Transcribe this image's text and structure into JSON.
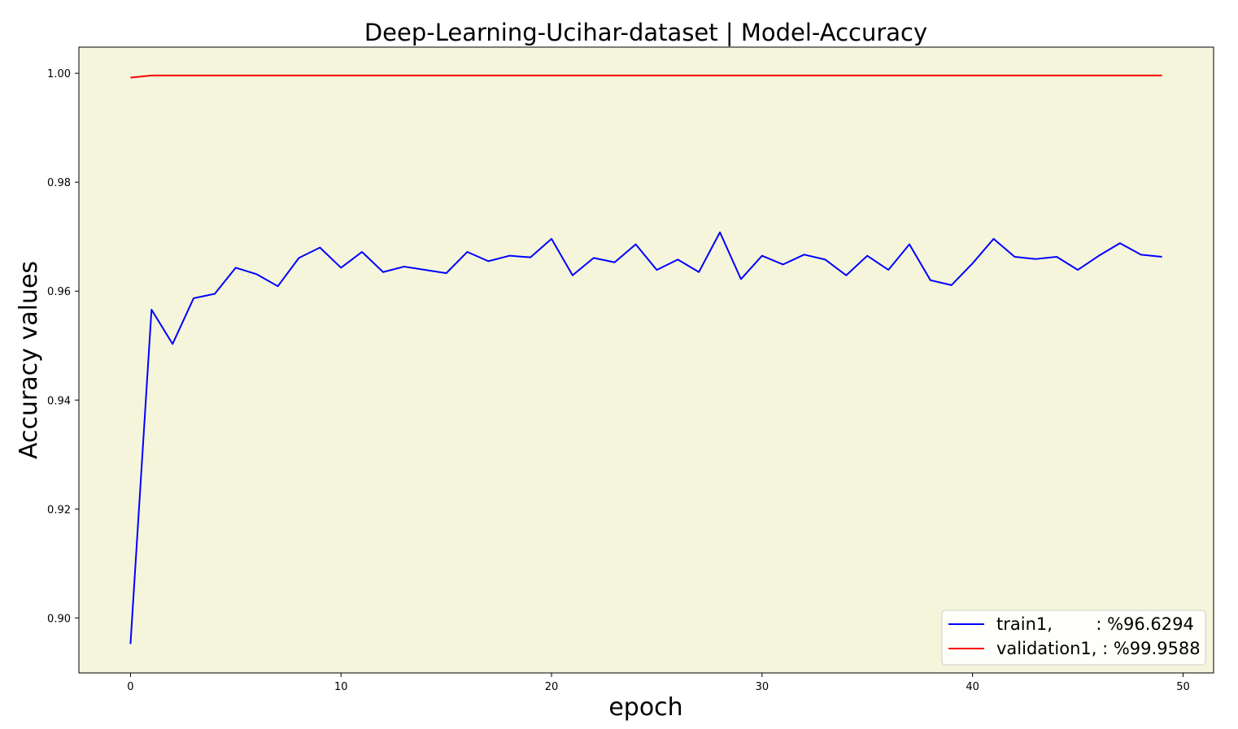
{
  "chart_data": {
    "type": "line",
    "title": "Deep-Learning-Ucihar-dataset  | Model-Accuracy",
    "xlabel": "epoch",
    "ylabel": "Accuracy values",
    "xlim": [
      -2.45,
      51.45
    ],
    "ylim": [
      0.8899,
      1.0048
    ],
    "xticks": [
      0,
      10,
      20,
      30,
      40,
      50
    ],
    "yticks": [
      0.9,
      0.92,
      0.94,
      0.96,
      0.98,
      1.0
    ],
    "xtick_labels": [
      "0",
      "10",
      "20",
      "30",
      "40",
      "50"
    ],
    "ytick_labels": [
      "0.90",
      "0.92",
      "0.94",
      "0.96",
      "0.98",
      "1.00"
    ],
    "grid": false,
    "legend_position": "lower-right",
    "plot_background": "#f5f5dc",
    "x": [
      0,
      1,
      2,
      3,
      4,
      5,
      6,
      7,
      8,
      9,
      10,
      11,
      12,
      13,
      14,
      15,
      16,
      17,
      18,
      19,
      20,
      21,
      22,
      23,
      24,
      25,
      26,
      27,
      28,
      29,
      30,
      31,
      32,
      33,
      34,
      35,
      36,
      37,
      38,
      39,
      40,
      41,
      42,
      43,
      44,
      45,
      46,
      47,
      48,
      49
    ],
    "series": [
      {
        "name": "train1,        : %96.6294",
        "color": "#0000ff",
        "values": [
          0.8952,
          0.9566,
          0.9503,
          0.9587,
          0.9595,
          0.9643,
          0.9631,
          0.9609,
          0.9661,
          0.968,
          0.9643,
          0.9672,
          0.9635,
          0.9645,
          0.9639,
          0.9633,
          0.9672,
          0.9655,
          0.9665,
          0.9662,
          0.9696,
          0.9629,
          0.9661,
          0.9653,
          0.9686,
          0.9639,
          0.9658,
          0.9635,
          0.9708,
          0.9622,
          0.9665,
          0.9649,
          0.9667,
          0.9658,
          0.9629,
          0.9665,
          0.9639,
          0.9686,
          0.962,
          0.9611,
          0.9651,
          0.9696,
          0.9663,
          0.9659,
          0.9663,
          0.9639,
          0.9665,
          0.9688,
          0.9667,
          0.9663
        ]
      },
      {
        "name": "validation1, : %99.9588",
        "color": "#ff0000",
        "values": [
          0.9992,
          0.9996,
          0.9996,
          0.9996,
          0.9996,
          0.9996,
          0.9996,
          0.9996,
          0.9996,
          0.9996,
          0.9996,
          0.9996,
          0.9996,
          0.9996,
          0.9996,
          0.9996,
          0.9996,
          0.9996,
          0.9996,
          0.9996,
          0.9996,
          0.9996,
          0.9996,
          0.9996,
          0.9996,
          0.9996,
          0.9996,
          0.9996,
          0.9996,
          0.9996,
          0.9996,
          0.9996,
          0.9996,
          0.9996,
          0.9996,
          0.9996,
          0.9996,
          0.9996,
          0.9996,
          0.9996,
          0.9996,
          0.9996,
          0.9996,
          0.9996,
          0.9996,
          0.9996,
          0.9996,
          0.9996,
          0.9996,
          0.9996
        ]
      }
    ]
  }
}
